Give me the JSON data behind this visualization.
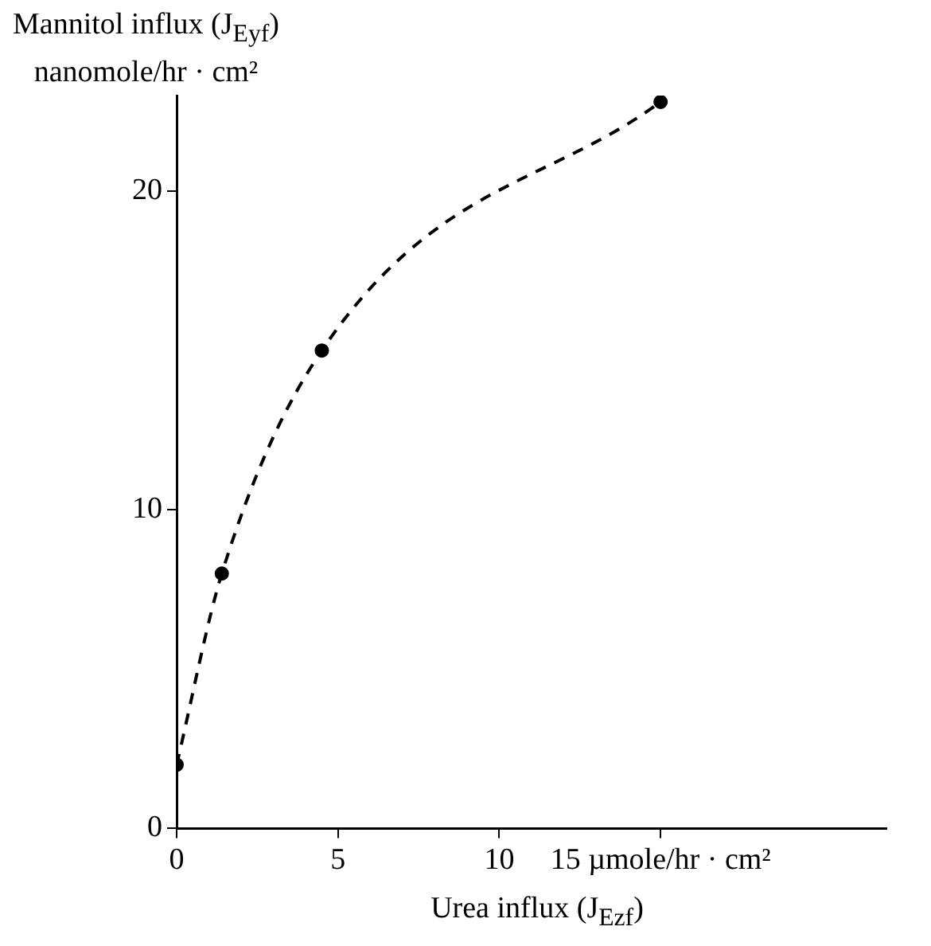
{
  "chart_data": {
    "type": "line",
    "xlabel": "Urea influx (J$_{Ezf}$)",
    "ylabel": "Mannitol influx (J$_{Eyf}$)\nnanomole/hr · cm²",
    "x": [
      0,
      1.4,
      4.5,
      15
    ],
    "series": [
      {
        "color": "#000000",
        "values": [
          2,
          8,
          15,
          22.8
        ]
      }
    ],
    "xlim": [
      0,
      22
    ],
    "xticks": [
      0,
      5,
      10,
      {
        "value": 15,
        "label": "15 µmole/hr · cm²"
      }
    ],
    "ylim": [
      0,
      23
    ],
    "yticks": [
      0,
      10,
      20
    ],
    "grid": false,
    "legend": false,
    "marker": "circle",
    "line_style": "dashed"
  }
}
